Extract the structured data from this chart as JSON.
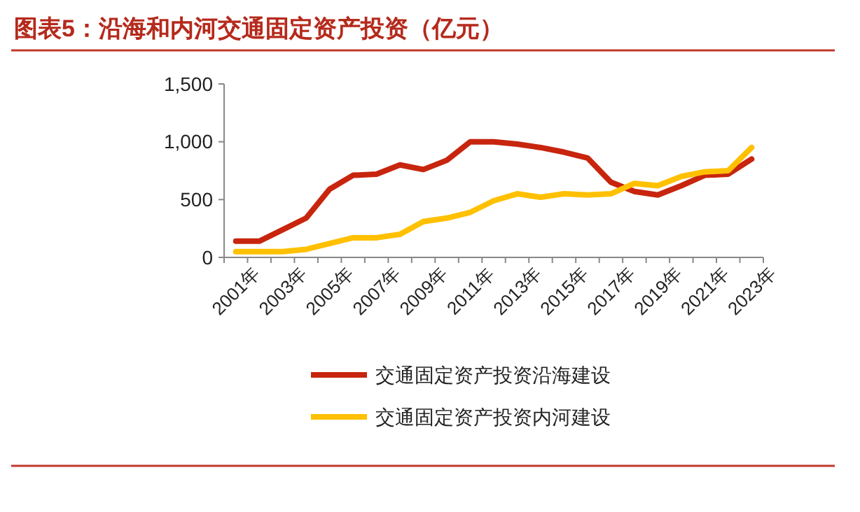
{
  "chart_data": {
    "type": "line",
    "title": "图表5：沿海和内河交通固定资产投资（亿元）",
    "categories": [
      "2001年",
      null,
      "2003年",
      null,
      "2005年",
      null,
      "2007年",
      null,
      "2009年",
      null,
      "2011年",
      null,
      "2013年",
      null,
      "2015年",
      null,
      "2017年",
      null,
      "2019年",
      null,
      "2021年",
      null,
      "2023年"
    ],
    "series": [
      {
        "name": "交通固定资产投资沿海建设",
        "color": "#c8250e",
        "values": [
          140,
          140,
          240,
          340,
          590,
          710,
          720,
          800,
          760,
          840,
          1000,
          1000,
          980,
          950,
          910,
          860,
          650,
          570,
          540,
          620,
          710,
          720,
          850
        ]
      },
      {
        "name": "交通固定资产投资内河建设",
        "color": "#ffc000",
        "values": [
          50,
          50,
          50,
          70,
          120,
          170,
          170,
          200,
          310,
          340,
          390,
          490,
          550,
          520,
          550,
          540,
          550,
          640,
          620,
          700,
          740,
          750,
          950
        ]
      }
    ],
    "ylim": [
      0,
      1500
    ],
    "yticks": [
      0,
      {
        "value": 500,
        "label": "500"
      },
      {
        "value": 1000,
        "label": "1,000"
      },
      {
        "value": 1500,
        "label": "1,500"
      }
    ],
    "grid": false,
    "legend": "bottom",
    "line_style": "solid",
    "marker": "none"
  }
}
